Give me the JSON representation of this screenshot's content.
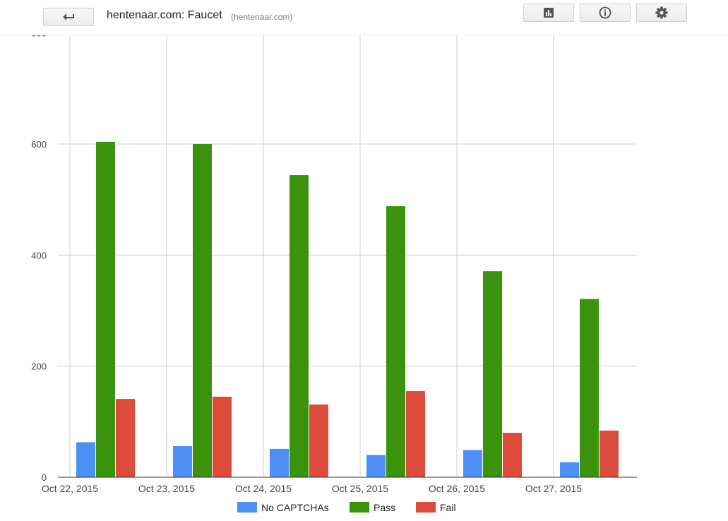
{
  "header": {
    "title": "hentenaar.com: Faucet",
    "subtitle": "(hentenaar.com)",
    "back_icon": "back-arrow-icon",
    "buttons": [
      {
        "name": "chart-button",
        "icon": "bar-chart-icon"
      },
      {
        "name": "info-button",
        "icon": "info-icon"
      },
      {
        "name": "settings-button",
        "icon": "gear-icon"
      }
    ]
  },
  "chart_data": {
    "type": "bar",
    "categories": [
      "Oct 22, 2015",
      "Oct 23, 2015",
      "Oct 24, 2015",
      "Oct 25, 2015",
      "Oct 26, 2015",
      "Oct 27, 2015"
    ],
    "series": [
      {
        "name": "No CAPTCHAs",
        "color": "#4e8ff6",
        "values": [
          63,
          56,
          51,
          40,
          49,
          27
        ]
      },
      {
        "name": "Pass",
        "color": "#3a930a",
        "values": [
          604,
          600,
          544,
          488,
          371,
          321
        ]
      },
      {
        "name": "Fail",
        "color": "#dc4b3c",
        "values": [
          141,
          145,
          131,
          155,
          80,
          84
        ]
      }
    ],
    "yticks": [
      "0",
      "200",
      "400",
      "600"
    ],
    "ylim": [
      0,
      800
    ],
    "grid": true,
    "legend_position": "bottom"
  }
}
